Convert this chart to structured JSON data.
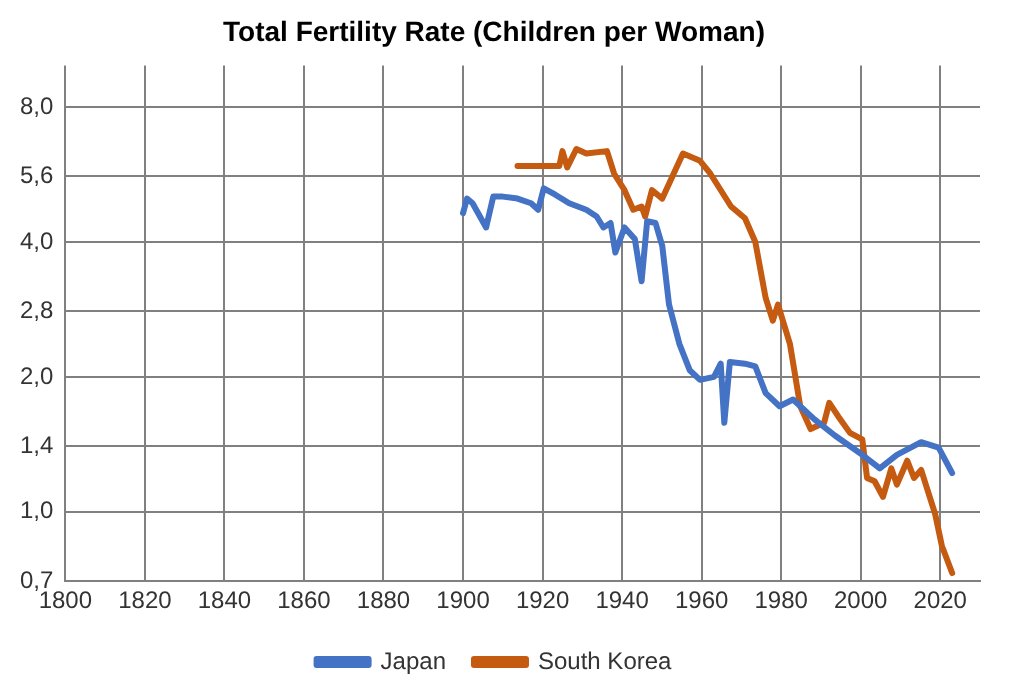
{
  "chart_data": {
    "type": "line",
    "title": "Total Fertility Rate (Children per Woman)",
    "log": "y",
    "grid": true,
    "legend": "bottom",
    "marker": "none",
    "line_style": "solid",
    "xlim": [
      1800,
      2030
    ],
    "xticks": [
      1800,
      1820,
      1840,
      1860,
      1880,
      1900,
      1920,
      1940,
      1960,
      1980,
      2000,
      2020
    ],
    "ylim": [
      0.7,
      9.9
    ],
    "yticks": [
      {
        "value": 0.7,
        "label": "0,7"
      },
      {
        "value": 1,
        "label": "1,0"
      },
      {
        "value": 1.4,
        "label": "1,4"
      },
      {
        "value": 2,
        "label": "2,0"
      },
      {
        "value": 2.8,
        "label": "2,8"
      },
      {
        "value": 4,
        "label": "4,0"
      },
      {
        "value": 5.6,
        "label": "5,6"
      },
      {
        "value": 8,
        "label": "8,0"
      }
    ],
    "series": [
      {
        "name": "Japan",
        "color": "#4472c4",
        "x": [
          1900,
          1901,
          1902.4,
          1905.8,
          1907.6,
          1910,
          1913.7,
          1917.1,
          1918.9,
          1920.3,
          1923.2,
          1926.7,
          1931,
          1933.6,
          1935.3,
          1937.1,
          1938.3,
          1940.6,
          1943.2,
          1944.9,
          1946.3,
          1948.4,
          1950.1,
          1951.8,
          1954.4,
          1957,
          1959.6,
          1963.1,
          1964.8,
          1965.7,
          1967.1,
          1970.9,
          1973.5,
          1976.1,
          1979.6,
          1983,
          1988.3,
          1993.5,
          2000.4,
          2004.8,
          2009.1,
          2015.2,
          2019.6,
          2023
        ],
        "values": [
          4.64,
          5.0,
          4.88,
          4.31,
          5.05,
          5.05,
          5.0,
          4.88,
          4.72,
          5.27,
          5.1,
          4.88,
          4.72,
          4.56,
          4.31,
          4.41,
          3.79,
          4.31,
          4.06,
          3.27,
          4.45,
          4.41,
          3.92,
          2.9,
          2.37,
          2.07,
          1.97,
          2.0,
          2.14,
          1.58,
          2.16,
          2.14,
          2.11,
          1.84,
          1.72,
          1.78,
          1.61,
          1.48,
          1.34,
          1.25,
          1.34,
          1.43,
          1.39,
          1.22
        ]
      },
      {
        "name": "South Korea",
        "color": "#c55a11",
        "x": [
          1913.7,
          1924.2,
          1925,
          1926.2,
          1928.5,
          1931,
          1936.2,
          1938,
          1940.6,
          1942.8,
          1944.9,
          1945.8,
          1947.5,
          1950.1,
          1955.3,
          1959.6,
          1962.2,
          1967.4,
          1970.9,
          1973.5,
          1976.1,
          1977.9,
          1979.2,
          1982.2,
          1984.8,
          1987.4,
          1990.8,
          1992.1,
          1994.4,
          1997.3,
          2000.4,
          2001.6,
          2003.5,
          2005.6,
          2007.7,
          2009.1,
          2011.7,
          2013.4,
          2015.2,
          2018.7,
          2020.4,
          2023
        ],
        "values": [
          5.91,
          5.91,
          6.38,
          5.87,
          6.45,
          6.3,
          6.38,
          5.68,
          5.22,
          4.72,
          4.8,
          4.56,
          5.22,
          5.0,
          6.3,
          6.07,
          5.68,
          4.8,
          4.52,
          4.0,
          3.0,
          2.67,
          2.9,
          2.37,
          1.72,
          1.53,
          1.58,
          1.75,
          1.63,
          1.5,
          1.45,
          1.19,
          1.17,
          1.08,
          1.25,
          1.15,
          1.3,
          1.19,
          1.24,
          0.99,
          0.84,
          0.73
        ]
      }
    ]
  }
}
